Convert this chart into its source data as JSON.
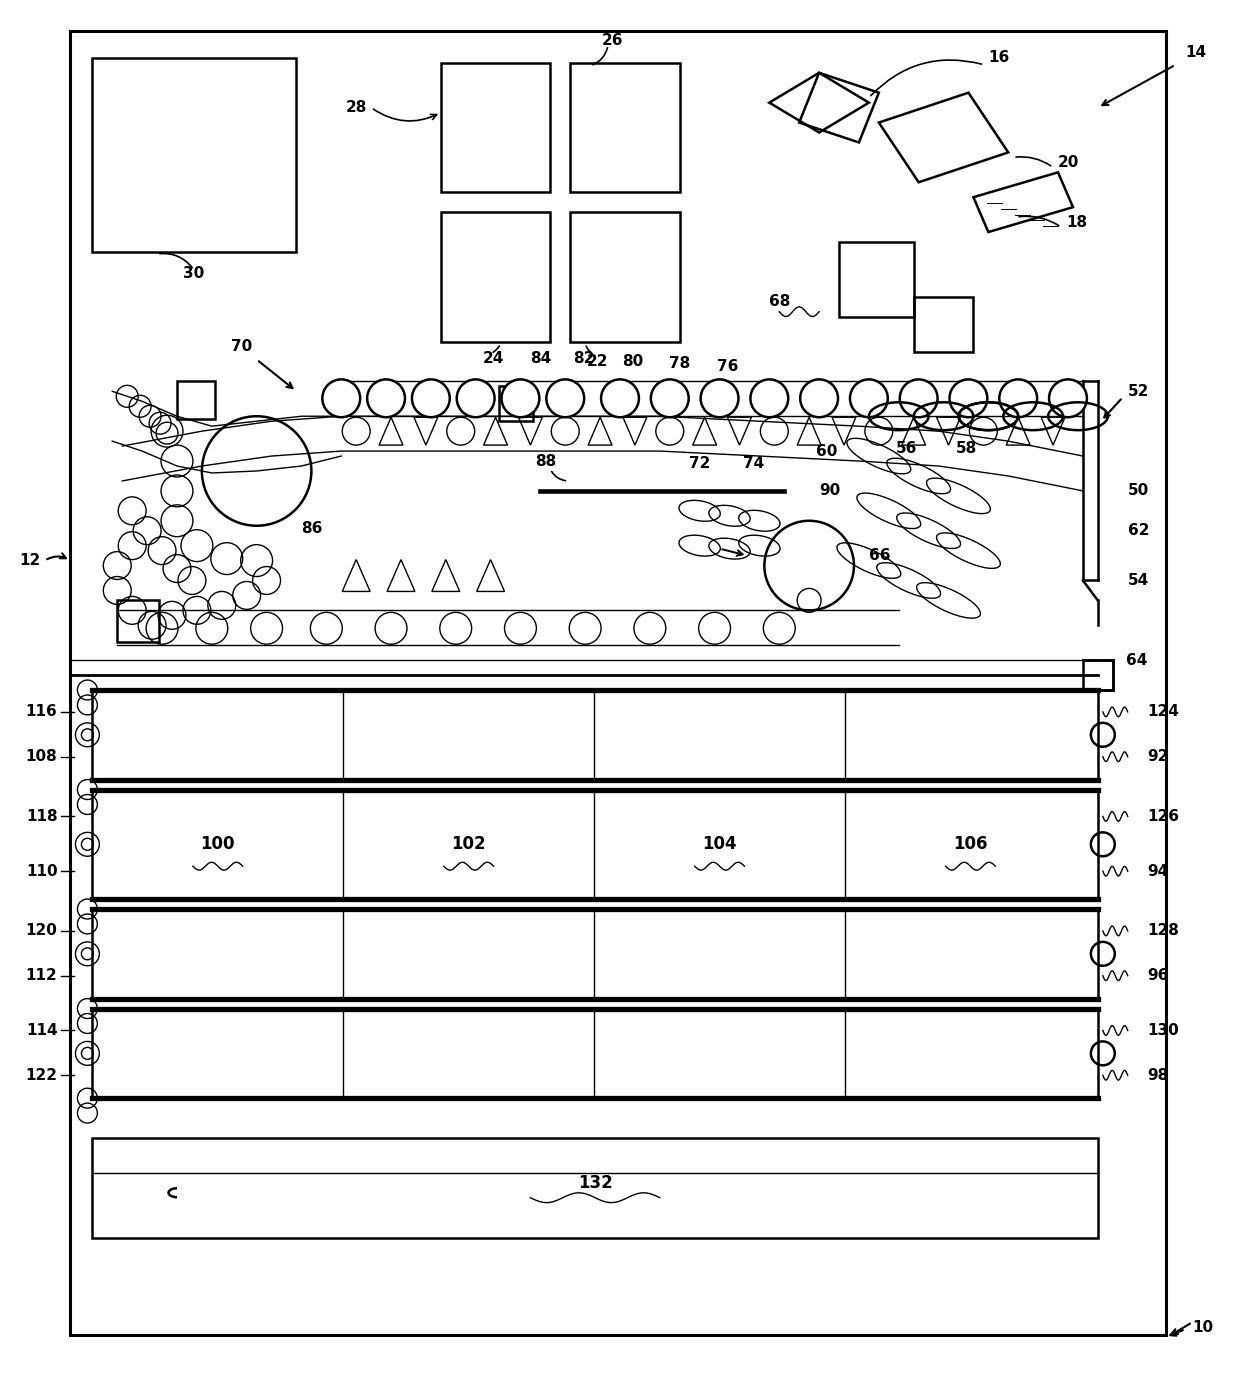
{
  "bg": "#ffffff",
  "lw": 1.8,
  "tlw": 1.0,
  "fs": 11,
  "fw": "bold"
}
